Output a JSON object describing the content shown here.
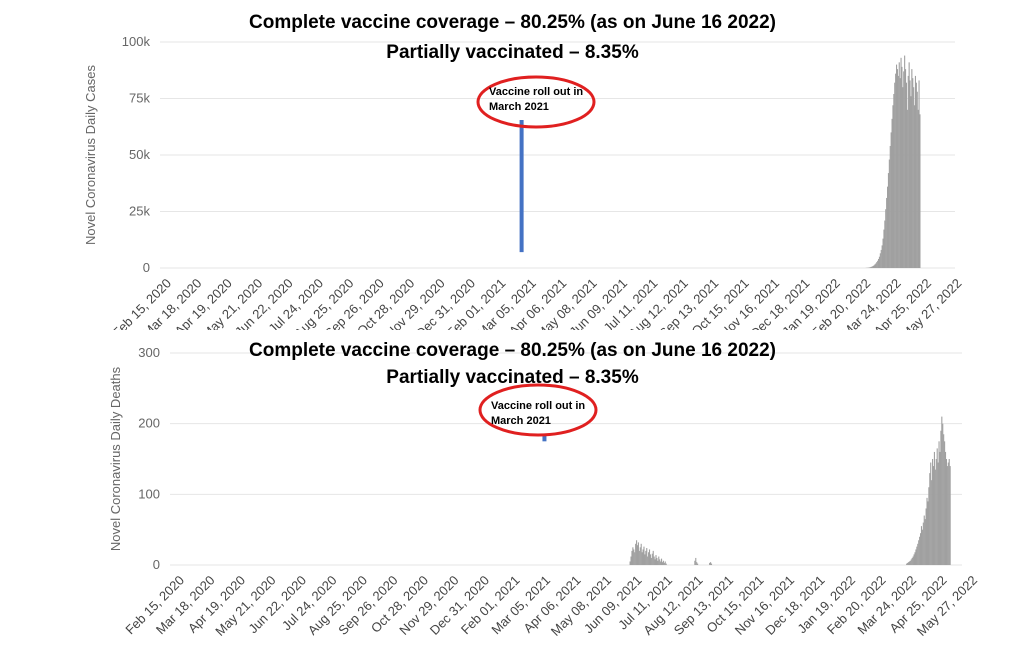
{
  "chart_data": [
    {
      "type": "bar",
      "title": "Complete vaccine coverage – 80.25% (as on June 16 2022)",
      "subtitle": "Partially vaccinated – 8.35%",
      "ylabel": "Novel Coronavirus Daily Cases",
      "xlabel": "",
      "ylim": [
        0,
        100000
      ],
      "yticks": [
        0,
        25000,
        50000,
        75000,
        100000
      ],
      "ytick_labels": [
        "0",
        "25k",
        "50k",
        "75k",
        "100k"
      ],
      "x_tick_labels": [
        "Feb 15, 2020",
        "Mar 18, 2020",
        "Apr 19, 2020",
        "May 21, 2020",
        "Jun 22, 2020",
        "Jul 24, 2020",
        "Aug 25, 2020",
        "Sep 26, 2020",
        "Oct 28, 2020",
        "Nov 29, 2020",
        "Dec 31, 2020",
        "Feb 01, 2021",
        "Mar 05, 2021",
        "Apr 06, 2021",
        "May 08, 2021",
        "Jun 09, 2021",
        "Jul 11, 2021",
        "Aug 12, 2021",
        "Sep 13, 2021",
        "Oct 15, 2021",
        "Nov 16, 2021",
        "Dec 18, 2021",
        "Jan 19, 2022",
        "Feb 20, 2022",
        "Mar 24, 2022",
        "Apr 25, 2022",
        "May 27, 2022"
      ],
      "grid": true,
      "bar_color": "#a0a0a0",
      "start_date": "2020-02-15",
      "series": [
        {
          "start": "2022-04-01",
          "values": [
            50,
            80,
            120,
            180,
            250,
            350,
            500,
            700,
            900,
            1200,
            1600,
            2000,
            2600,
            3200,
            4000,
            5000,
            6500,
            8000,
            10000,
            13000,
            17000,
            21000,
            26000,
            31000,
            36000,
            42000,
            48000,
            54000,
            60000,
            66000,
            72000,
            77000,
            82000,
            86000,
            90000,
            88000,
            85000,
            91000,
            84000,
            93000,
            89000,
            80000,
            87000,
            94000,
            88000,
            82000,
            70000,
            85000,
            91000,
            83000,
            76000,
            88000,
            84000,
            80000,
            72000,
            85000,
            82000,
            78000,
            70000,
            83000,
            68000
          ]
        }
      ],
      "annotation": {
        "text": "Vaccine roll out in March 2021",
        "date": "2021-03-15",
        "marker_value": 7000,
        "marker_color": "#4472c4",
        "circle_color": "#e02020"
      }
    },
    {
      "type": "bar",
      "title": "Complete vaccine coverage – 80.25% (as on June 16 2022)",
      "subtitle": "Partially vaccinated – 8.35%",
      "ylabel": "Novel Coronavirus Daily Deaths",
      "xlabel": "",
      "ylim": [
        0,
        300
      ],
      "yticks": [
        0,
        100,
        200,
        300
      ],
      "ytick_labels": [
        "0",
        "100",
        "200",
        "300"
      ],
      "x_tick_labels": [
        "Feb 15, 2020",
        "Mar 18, 2020",
        "Apr 19, 2020",
        "May 21, 2020",
        "Jun 22, 2020",
        "Jul 24, 2020",
        "Aug 25, 2020",
        "Sep 26, 2020",
        "Oct 28, 2020",
        "Nov 29, 2020",
        "Dec 31, 2020",
        "Feb 01, 2021",
        "Mar 05, 2021",
        "Apr 06, 2021",
        "May 08, 2021",
        "Jun 09, 2021",
        "Jul 11, 2021",
        "Aug 12, 2021",
        "Sep 13, 2021",
        "Oct 15, 2021",
        "Nov 16, 2021",
        "Dec 18, 2021",
        "Jan 19, 2022",
        "Feb 20, 2022",
        "Mar 24, 2022",
        "Apr 25, 2022",
        "May 27, 2022"
      ],
      "grid": true,
      "bar_color": "#a0a0a0",
      "start_date": "2020-02-15",
      "series": [
        {
          "start": "2021-06-15",
          "values": [
            5,
            12,
            20,
            25,
            22,
            18,
            30,
            35,
            28,
            32,
            20,
            25,
            30,
            18,
            22,
            26,
            15,
            20,
            24,
            12,
            18,
            22,
            15,
            10,
            16,
            20,
            12,
            8,
            14,
            10,
            6,
            12,
            8,
            5,
            9,
            4,
            6,
            3,
            5,
            2
          ]
        },
        {
          "start": "2021-08-10",
          "values": [
            0,
            0,
            0,
            0,
            0,
            0,
            0,
            0,
            0,
            0,
            0,
            0,
            0,
            0,
            6,
            10,
            4,
            2,
            0,
            0,
            0,
            0,
            0,
            0,
            0,
            0,
            0,
            0,
            0,
            0,
            3,
            4,
            2
          ]
        },
        {
          "start": "2022-04-10",
          "values": [
            2,
            3,
            4,
            5,
            6,
            8,
            10,
            12,
            15,
            18,
            22,
            26,
            30,
            35,
            40,
            45,
            55,
            50,
            60,
            70,
            65,
            80,
            95,
            90,
            110,
            130,
            145,
            120,
            150,
            140,
            160,
            135,
            150,
            165,
            145,
            175,
            160,
            190,
            210,
            200,
            185,
            175,
            160,
            150,
            140,
            145,
            150,
            140
          ]
        }
      ],
      "annotation": {
        "text": "Vaccine roll out in March 2021",
        "date": "2021-03-15",
        "marker_value": 175,
        "marker_color": "#4472c4",
        "circle_color": "#e02020"
      }
    }
  ]
}
